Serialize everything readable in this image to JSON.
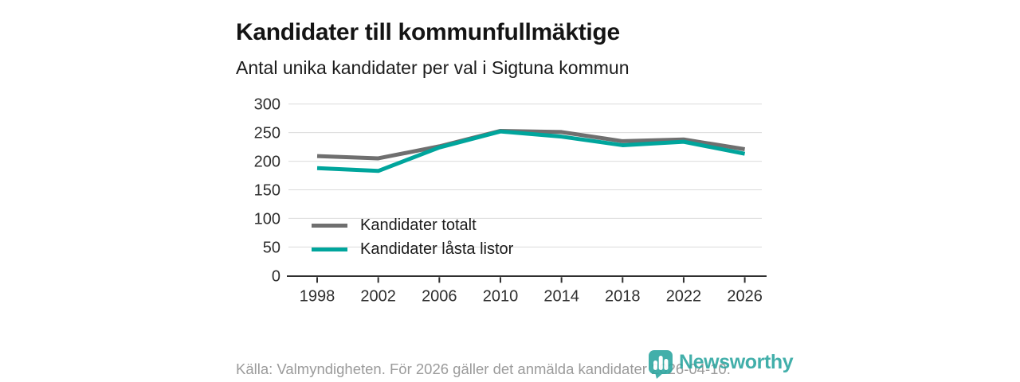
{
  "header": {
    "title": "Kandidater till kommunfullmäktige",
    "subtitle": "Antal unika kandidater per val i Sigtuna kommun"
  },
  "chart_data": {
    "type": "line",
    "x": [
      1998,
      2002,
      2006,
      2010,
      2014,
      2018,
      2022,
      2026
    ],
    "series": [
      {
        "name": "Kandidater totalt",
        "color": "#6f6f6f",
        "values": [
          209,
          205,
          226,
          253,
          251,
          235,
          238,
          221
        ]
      },
      {
        "name": "Kandidater låsta listor",
        "color": "#00a59c",
        "values": [
          188,
          183,
          224,
          252,
          243,
          228,
          234,
          213
        ]
      }
    ],
    "title": "Kandidater till kommunfullmäktige",
    "subtitle": "Antal unika kandidater per val i Sigtuna kommun",
    "xlabel": "",
    "ylabel": "",
    "ylim": [
      0,
      300
    ],
    "ytick_step": 50,
    "grid": true,
    "legend_position": "inside-bottom-left",
    "grid_color": "#dbdbdb",
    "axis_color": "#2f2f2f"
  },
  "footer": {
    "source": "Källa: Valmyndigheten. För 2026 gäller det anmälda kandidater 2026-04-10.",
    "brand": "Newsworthy",
    "brand_color": "#2ea7a1"
  }
}
